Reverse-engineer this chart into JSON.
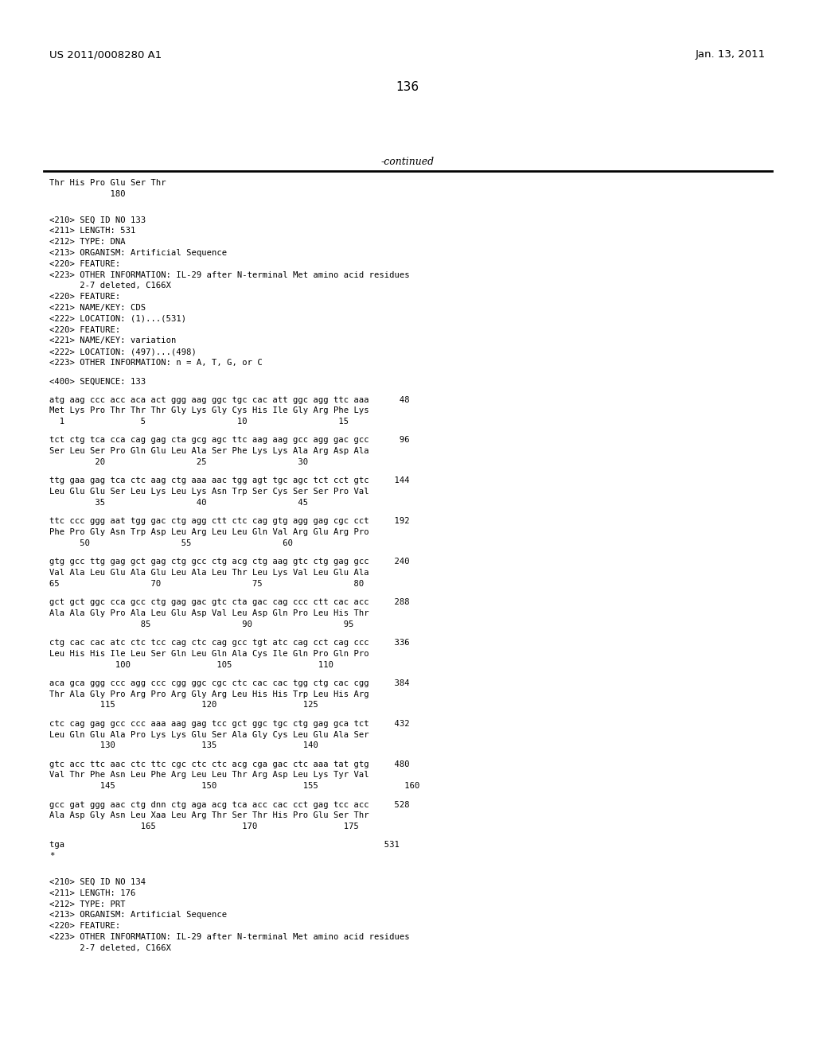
{
  "header_left": "US 2011/0008280 A1",
  "header_right": "Jan. 13, 2011",
  "page_number": "136",
  "continued_text": "-continued",
  "bg_color": "#ffffff",
  "text_color": "#000000",
  "content": [
    {
      "type": "mono",
      "text": "Thr His Pro Glu Ser Thr"
    },
    {
      "type": "mono",
      "text": "            180"
    },
    {
      "type": "blank"
    },
    {
      "type": "blank"
    },
    {
      "type": "mono",
      "text": "<210> SEQ ID NO 133"
    },
    {
      "type": "mono",
      "text": "<211> LENGTH: 531"
    },
    {
      "type": "mono",
      "text": "<212> TYPE: DNA"
    },
    {
      "type": "mono",
      "text": "<213> ORGANISM: Artificial Sequence"
    },
    {
      "type": "mono",
      "text": "<220> FEATURE:"
    },
    {
      "type": "mono",
      "text": "<223> OTHER INFORMATION: IL-29 after N-terminal Met amino acid residues"
    },
    {
      "type": "mono",
      "text": "      2-7 deleted, C166X"
    },
    {
      "type": "mono",
      "text": "<220> FEATURE:"
    },
    {
      "type": "mono",
      "text": "<221> NAME/KEY: CDS"
    },
    {
      "type": "mono",
      "text": "<222> LOCATION: (1)...(531)"
    },
    {
      "type": "mono",
      "text": "<220> FEATURE:"
    },
    {
      "type": "mono",
      "text": "<221> NAME/KEY: variation"
    },
    {
      "type": "mono",
      "text": "<222> LOCATION: (497)...(498)"
    },
    {
      "type": "mono",
      "text": "<223> OTHER INFORMATION: n = A, T, G, or C"
    },
    {
      "type": "blank"
    },
    {
      "type": "mono",
      "text": "<400> SEQUENCE: 133"
    },
    {
      "type": "blank"
    },
    {
      "type": "mono",
      "text": "atg aag ccc acc aca act ggg aag ggc tgc cac att ggc agg ttc aaa      48"
    },
    {
      "type": "mono",
      "text": "Met Lys Pro Thr Thr Thr Gly Lys Gly Cys His Ile Gly Arg Phe Lys"
    },
    {
      "type": "mono",
      "text": "  1               5                  10                  15"
    },
    {
      "type": "blank"
    },
    {
      "type": "mono",
      "text": "tct ctg tca cca cag gag cta gcg agc ttc aag aag gcc agg gac gcc      96"
    },
    {
      "type": "mono",
      "text": "Ser Leu Ser Pro Gln Glu Leu Ala Ser Phe Lys Lys Ala Arg Asp Ala"
    },
    {
      "type": "mono",
      "text": "         20                  25                  30"
    },
    {
      "type": "blank"
    },
    {
      "type": "mono",
      "text": "ttg gaa gag tca ctc aag ctg aaa aac tgg agt tgc agc tct cct gtc     144"
    },
    {
      "type": "mono",
      "text": "Leu Glu Glu Ser Leu Lys Leu Lys Asn Trp Ser Cys Ser Ser Pro Val"
    },
    {
      "type": "mono",
      "text": "         35                  40                  45"
    },
    {
      "type": "blank"
    },
    {
      "type": "mono",
      "text": "ttc ccc ggg aat tgg gac ctg agg ctt ctc cag gtg agg gag cgc cct     192"
    },
    {
      "type": "mono",
      "text": "Phe Pro Gly Asn Trp Asp Leu Arg Leu Leu Gln Val Arg Glu Arg Pro"
    },
    {
      "type": "mono",
      "text": "      50                  55                  60"
    },
    {
      "type": "blank"
    },
    {
      "type": "mono",
      "text": "gtg gcc ttg gag gct gag ctg gcc ctg acg ctg aag gtc ctg gag gcc     240"
    },
    {
      "type": "mono",
      "text": "Val Ala Leu Glu Ala Glu Leu Ala Leu Thr Leu Lys Val Leu Glu Ala"
    },
    {
      "type": "mono",
      "text": "65                  70                  75                  80"
    },
    {
      "type": "blank"
    },
    {
      "type": "mono",
      "text": "gct gct ggc cca gcc ctg gag gac gtc cta gac cag ccc ctt cac acc     288"
    },
    {
      "type": "mono",
      "text": "Ala Ala Gly Pro Ala Leu Glu Asp Val Leu Asp Gln Pro Leu His Thr"
    },
    {
      "type": "mono",
      "text": "                  85                  90                  95"
    },
    {
      "type": "blank"
    },
    {
      "type": "mono",
      "text": "ctg cac cac atc ctc tcc cag ctc cag gcc tgt atc cag cct cag ccc     336"
    },
    {
      "type": "mono",
      "text": "Leu His His Ile Leu Ser Gln Leu Gln Ala Cys Ile Gln Pro Gln Pro"
    },
    {
      "type": "mono",
      "text": "             100                 105                 110"
    },
    {
      "type": "blank"
    },
    {
      "type": "mono",
      "text": "aca gca ggg ccc agg ccc cgg ggc cgc ctc cac cac tgg ctg cac cgg     384"
    },
    {
      "type": "mono",
      "text": "Thr Ala Gly Pro Arg Pro Arg Gly Arg Leu His His Trp Leu His Arg"
    },
    {
      "type": "mono",
      "text": "          115                 120                 125"
    },
    {
      "type": "blank"
    },
    {
      "type": "mono",
      "text": "ctc cag gag gcc ccc aaa aag gag tcc gct ggc tgc ctg gag gca tct     432"
    },
    {
      "type": "mono",
      "text": "Leu Gln Glu Ala Pro Lys Lys Glu Ser Ala Gly Cys Leu Glu Ala Ser"
    },
    {
      "type": "mono",
      "text": "          130                 135                 140"
    },
    {
      "type": "blank"
    },
    {
      "type": "mono",
      "text": "gtc acc ttc aac ctc ttc cgc ctc ctc acg cga gac ctc aaa tat gtg     480"
    },
    {
      "type": "mono",
      "text": "Val Thr Phe Asn Leu Phe Arg Leu Leu Thr Arg Asp Leu Lys Tyr Val"
    },
    {
      "type": "mono",
      "text": "          145                 150                 155                 160"
    },
    {
      "type": "blank"
    },
    {
      "type": "mono",
      "text": "gcc gat ggg aac ctg dnn ctg aga acg tca acc cac cct gag tcc acc     528"
    },
    {
      "type": "mono",
      "text": "Ala Asp Gly Asn Leu Xaa Leu Arg Thr Ser Thr His Pro Glu Ser Thr"
    },
    {
      "type": "mono",
      "text": "                  165                 170                 175"
    },
    {
      "type": "blank"
    },
    {
      "type": "mono",
      "text": "tga                                                               531"
    },
    {
      "type": "mono",
      "text": "*"
    },
    {
      "type": "blank"
    },
    {
      "type": "blank"
    },
    {
      "type": "mono",
      "text": "<210> SEQ ID NO 134"
    },
    {
      "type": "mono",
      "text": "<211> LENGTH: 176"
    },
    {
      "type": "mono",
      "text": "<212> TYPE: PRT"
    },
    {
      "type": "mono",
      "text": "<213> ORGANISM: Artificial Sequence"
    },
    {
      "type": "mono",
      "text": "<220> FEATURE:"
    },
    {
      "type": "mono",
      "text": "<223> OTHER INFORMATION: IL-29 after N-terminal Met amino acid residues"
    },
    {
      "type": "mono",
      "text": "      2-7 deleted, C166X"
    }
  ]
}
